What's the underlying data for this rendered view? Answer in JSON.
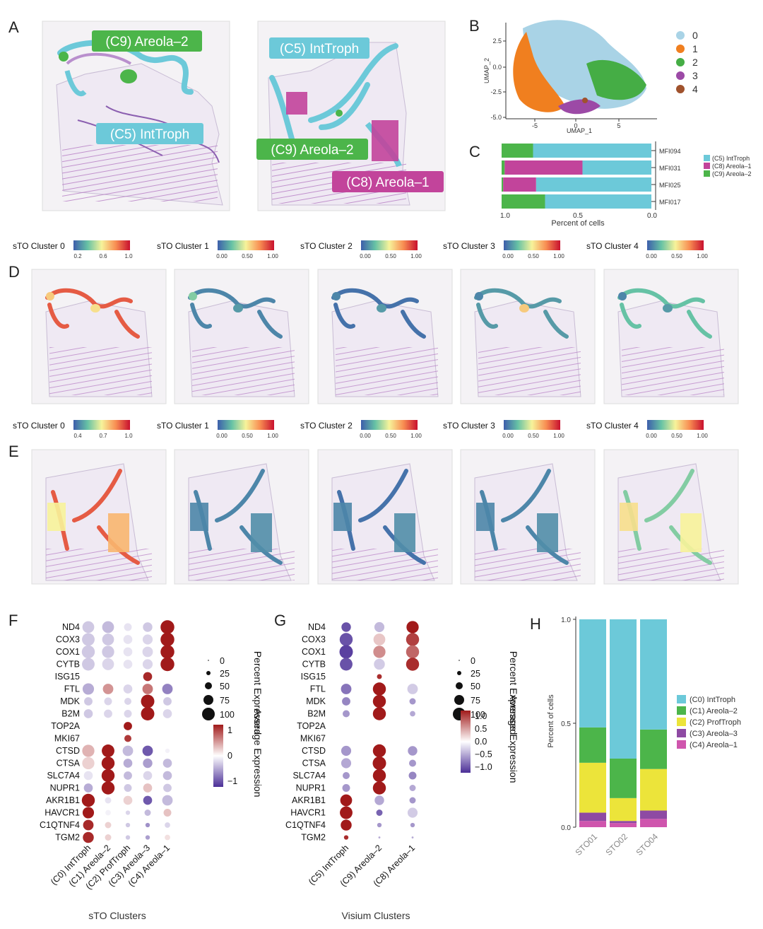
{
  "panels": {
    "A": "A",
    "B": "B",
    "C": "C",
    "D": "D",
    "E": "E",
    "F": "F",
    "G": "G",
    "H": "H"
  },
  "panelA": {
    "left_labels": [
      "(C9) Areola–2",
      "(C5) IntTroph"
    ],
    "right_labels": [
      "(C5) IntTroph",
      "(C9) Areola–2",
      "(C8) Areola–1"
    ],
    "colors": {
      "intTroph": "#6cc9d9",
      "areola2": "#4cb54a",
      "areola1": "#c2449b"
    }
  },
  "chart_data": [
    {
      "type": "scatter",
      "panel": "B",
      "xlabel": "UMAP_1",
      "ylabel": "UMAP_2",
      "xticks": [
        "-5",
        "0",
        "5"
      ],
      "yticks": [
        "2.5",
        "0.0",
        "-2.5",
        "-5.0"
      ],
      "legend": [
        {
          "name": "0",
          "color": "#a9d3e6"
        },
        {
          "name": "1",
          "color": "#f07f1f"
        },
        {
          "name": "2",
          "color": "#45ad45"
        },
        {
          "name": "3",
          "color": "#9c4aa6"
        },
        {
          "name": "4",
          "color": "#a0522d"
        }
      ]
    },
    {
      "type": "bar",
      "panel": "C",
      "orientation": "horizontal-stacked",
      "xlabel": "Percent of cells",
      "xticks": [
        "1.0",
        "0.5",
        "0.0"
      ],
      "categories": [
        "MFI094",
        "MFI031",
        "MFI025",
        "MFI017"
      ],
      "series": [
        {
          "name": "(C5) IntTroph",
          "color": "#6cc9d9",
          "values": [
            0.79,
            0.46,
            0.77,
            0.71
          ]
        },
        {
          "name": "(C8) Areola–1",
          "color": "#c2449b",
          "values": [
            0.0,
            0.52,
            0.22,
            0.0
          ]
        },
        {
          "name": "(C9) Areola–2",
          "color": "#4cb54a",
          "values": [
            0.21,
            0.02,
            0.01,
            0.29
          ]
        }
      ]
    },
    {
      "type": "scatter",
      "panel": "F",
      "xlabel": "sTO Clusters",
      "clusters": [
        "(C0) IntTroph",
        "(C1) Areola–2",
        "(C2) ProfTroph",
        "(C3) Areola–3",
        "(C4) Areola–1"
      ],
      "genes": [
        "ND4",
        "COX3",
        "COX1",
        "CYTB",
        "ISG15",
        "FTL",
        "MDK",
        "B2M",
        "TOP2A",
        "MKI67",
        "CTSD",
        "CTSA",
        "SLC7A4",
        "NUPR1",
        "AKR1B1",
        "HAVCR1",
        "C1QTNF4",
        "TGM2"
      ],
      "size_legend_title": "Percent Expressed",
      "size_legend": [
        "0",
        "25",
        "50",
        "75",
        "100"
      ],
      "color_legend_title": "Average Expression",
      "color_ticks": [
        "1",
        "0",
        "−1"
      ],
      "pct": [
        [
          70,
          70,
          30,
          45,
          95
        ],
        [
          80,
          70,
          40,
          50,
          95
        ],
        [
          85,
          75,
          40,
          55,
          95
        ],
        [
          80,
          70,
          40,
          50,
          95
        ],
        [
          2,
          2,
          2,
          40,
          2
        ],
        [
          65,
          55,
          40,
          55,
          55
        ],
        [
          35,
          30,
          25,
          90,
          35
        ],
        [
          40,
          35,
          30,
          90,
          40
        ],
        [
          2,
          3,
          35,
          2,
          2
        ],
        [
          2,
          2,
          25,
          2,
          2
        ],
        [
          75,
          80,
          55,
          55,
          10
        ],
        [
          75,
          85,
          40,
          45,
          40
        ],
        [
          40,
          85,
          35,
          40,
          40
        ],
        [
          40,
          85,
          30,
          40,
          35
        ],
        [
          85,
          20,
          40,
          40,
          55
        ],
        [
          65,
          15,
          10,
          20,
          30
        ],
        [
          55,
          20,
          10,
          10,
          15
        ],
        [
          60,
          20,
          10,
          10,
          15
        ]
      ],
      "avg": [
        [
          -0.4,
          -0.5,
          -0.2,
          -0.4,
          1.6
        ],
        [
          -0.4,
          -0.4,
          -0.2,
          -0.3,
          1.7
        ],
        [
          -0.4,
          -0.4,
          -0.2,
          -0.3,
          1.7
        ],
        [
          -0.4,
          -0.3,
          -0.2,
          -0.3,
          1.7
        ],
        [
          0,
          0,
          0,
          1.4,
          0
        ],
        [
          -0.6,
          0.7,
          -0.3,
          0.9,
          -0.9
        ],
        [
          -0.4,
          -0.3,
          -0.3,
          1.6,
          -0.4
        ],
        [
          -0.4,
          -0.3,
          -0.3,
          1.6,
          -0.3
        ],
        [
          0,
          0,
          1.5,
          0,
          0
        ],
        [
          0,
          0,
          1.3,
          0,
          0
        ],
        [
          0.5,
          1.5,
          -0.5,
          -1.2,
          -0.1
        ],
        [
          0.3,
          1.6,
          -0.6,
          -0.7,
          -0.5
        ],
        [
          -0.2,
          1.6,
          -0.5,
          -0.3,
          -0.5
        ],
        [
          -0.6,
          1.6,
          -0.4,
          0.4,
          -0.4
        ],
        [
          1.5,
          -0.2,
          0.3,
          -1.2,
          -0.5
        ],
        [
          1.5,
          -0.1,
          -0.3,
          -0.5,
          0.4
        ],
        [
          1.4,
          0.3,
          -0.4,
          -0.8,
          -0.3
        ],
        [
          1.4,
          0.3,
          -0.4,
          -0.7,
          0.2
        ]
      ]
    },
    {
      "type": "scatter",
      "panel": "G",
      "xlabel": "Visium Clusters",
      "clusters": [
        "(C5) IntTroph",
        "(C9) Areola–2",
        "(C8) Areola–1"
      ],
      "genes": [
        "ND4",
        "COX3",
        "COX1",
        "CYTB",
        "ISG15",
        "FTL",
        "MDK",
        "B2M",
        "TOP2A",
        "MKI67",
        "CTSD",
        "CTSA",
        "SLC7A4",
        "NUPR1",
        "AKR1B1",
        "HAVCR1",
        "C1QTNF4",
        "TGM2"
      ],
      "size_legend_title": "Percent Expressed",
      "size_legend": [
        "0",
        "25",
        "50",
        "75",
        "100"
      ],
      "color_legend_title": "Average Expression",
      "color_ticks": [
        "1.0",
        "0.5",
        "0.0",
        "−0.5",
        "−1.0"
      ],
      "pct": [
        [
          45,
          50,
          75
        ],
        [
          85,
          70,
          85
        ],
        [
          90,
          75,
          85
        ],
        [
          80,
          60,
          85
        ],
        [
          2,
          12,
          2
        ],
        [
          55,
          85,
          55
        ],
        [
          35,
          85,
          20
        ],
        [
          25,
          85,
          15
        ],
        [
          2,
          2,
          2
        ],
        [
          2,
          2,
          2
        ],
        [
          50,
          85,
          45
        ],
        [
          50,
          90,
          25
        ],
        [
          25,
          85,
          30
        ],
        [
          30,
          85,
          20
        ],
        [
          70,
          45,
          20
        ],
        [
          80,
          20,
          50
        ],
        [
          60,
          10,
          10
        ],
        [
          10,
          2,
          2
        ]
      ],
      "avg": [
        [
          -1.0,
          -0.4,
          1.2
        ],
        [
          -1.0,
          0.3,
          1.0
        ],
        [
          -1.1,
          0.6,
          0.8
        ],
        [
          -1.0,
          -0.3,
          1.1
        ],
        [
          0,
          1.1,
          0
        ],
        [
          -0.8,
          1.2,
          -0.3
        ],
        [
          -0.7,
          1.2,
          -0.6
        ],
        [
          -0.6,
          1.2,
          -0.5
        ],
        [
          0,
          0,
          0
        ],
        [
          0,
          0,
          0
        ],
        [
          -0.6,
          1.2,
          -0.6
        ],
        [
          -0.5,
          1.2,
          -0.6
        ],
        [
          -0.6,
          1.2,
          -0.7
        ],
        [
          -0.6,
          1.2,
          -0.5
        ],
        [
          1.2,
          -0.5,
          -0.6
        ],
        [
          1.2,
          -0.9,
          -0.3
        ],
        [
          1.2,
          -0.6,
          -0.6
        ],
        [
          1.1,
          -0.5,
          -0.5
        ]
      ]
    },
    {
      "type": "bar",
      "panel": "H",
      "orientation": "vertical-stacked",
      "ylabel": "Percent of cells",
      "yticks": [
        "1.0",
        "0.5",
        "0.0"
      ],
      "ylim": [
        0,
        1
      ],
      "categories": [
        "STO01",
        "STO02",
        "STO04"
      ],
      "series": [
        {
          "name": "(C0) IntTroph",
          "color": "#6cc9d9",
          "values": [
            0.52,
            0.67,
            0.53
          ]
        },
        {
          "name": "(C1) Areola–2",
          "color": "#4cb54a",
          "values": [
            0.17,
            0.19,
            0.19
          ]
        },
        {
          "name": "(C2) ProfTroph",
          "color": "#ece43a",
          "values": [
            0.24,
            0.11,
            0.2
          ]
        },
        {
          "name": "(C3) Areola–3",
          "color": "#8e4aa3",
          "values": [
            0.04,
            0.01,
            0.04
          ]
        },
        {
          "name": "(C4) Areola–1",
          "color": "#cf55ad",
          "values": [
            0.03,
            0.02,
            0.04
          ]
        }
      ]
    }
  ],
  "colorbars_D": [
    {
      "title": "sTO Cluster 0",
      "ticks": [
        "0.2",
        "0.6",
        "1.0"
      ]
    },
    {
      "title": "sTO Cluster 1",
      "ticks": [
        "0.00",
        "0.50",
        "1.00"
      ]
    },
    {
      "title": "sTO Cluster 2",
      "ticks": [
        "0.00",
        "0.50",
        "1.00"
      ]
    },
    {
      "title": "sTO Cluster 3",
      "ticks": [
        "0.00",
        "0.50",
        "1.00"
      ]
    },
    {
      "title": "sTO Cluster 4",
      "ticks": [
        "0.00",
        "0.50",
        "1.00"
      ]
    }
  ],
  "colorbars_E": [
    {
      "title": "sTO Cluster 0",
      "ticks": [
        "0.4",
        "0.7",
        "1.0"
      ]
    },
    {
      "title": "sTO Cluster 1",
      "ticks": [
        "0.00",
        "0.50",
        "1.00"
      ]
    },
    {
      "title": "sTO Cluster 2",
      "ticks": [
        "0.00",
        "0.50",
        "1.00"
      ]
    },
    {
      "title": "sTO Cluster 3",
      "ticks": [
        "0.00",
        "0.50",
        "1.00"
      ]
    },
    {
      "title": "sTO Cluster 4",
      "ticks": [
        "0.00",
        "0.50",
        "1.00"
      ]
    }
  ],
  "tissue_levels_D": [
    0.85,
    0.1,
    0.05,
    0.15,
    0.25
  ],
  "tissue_levels_E": [
    0.85,
    0.1,
    0.05,
    0.1,
    0.3
  ]
}
